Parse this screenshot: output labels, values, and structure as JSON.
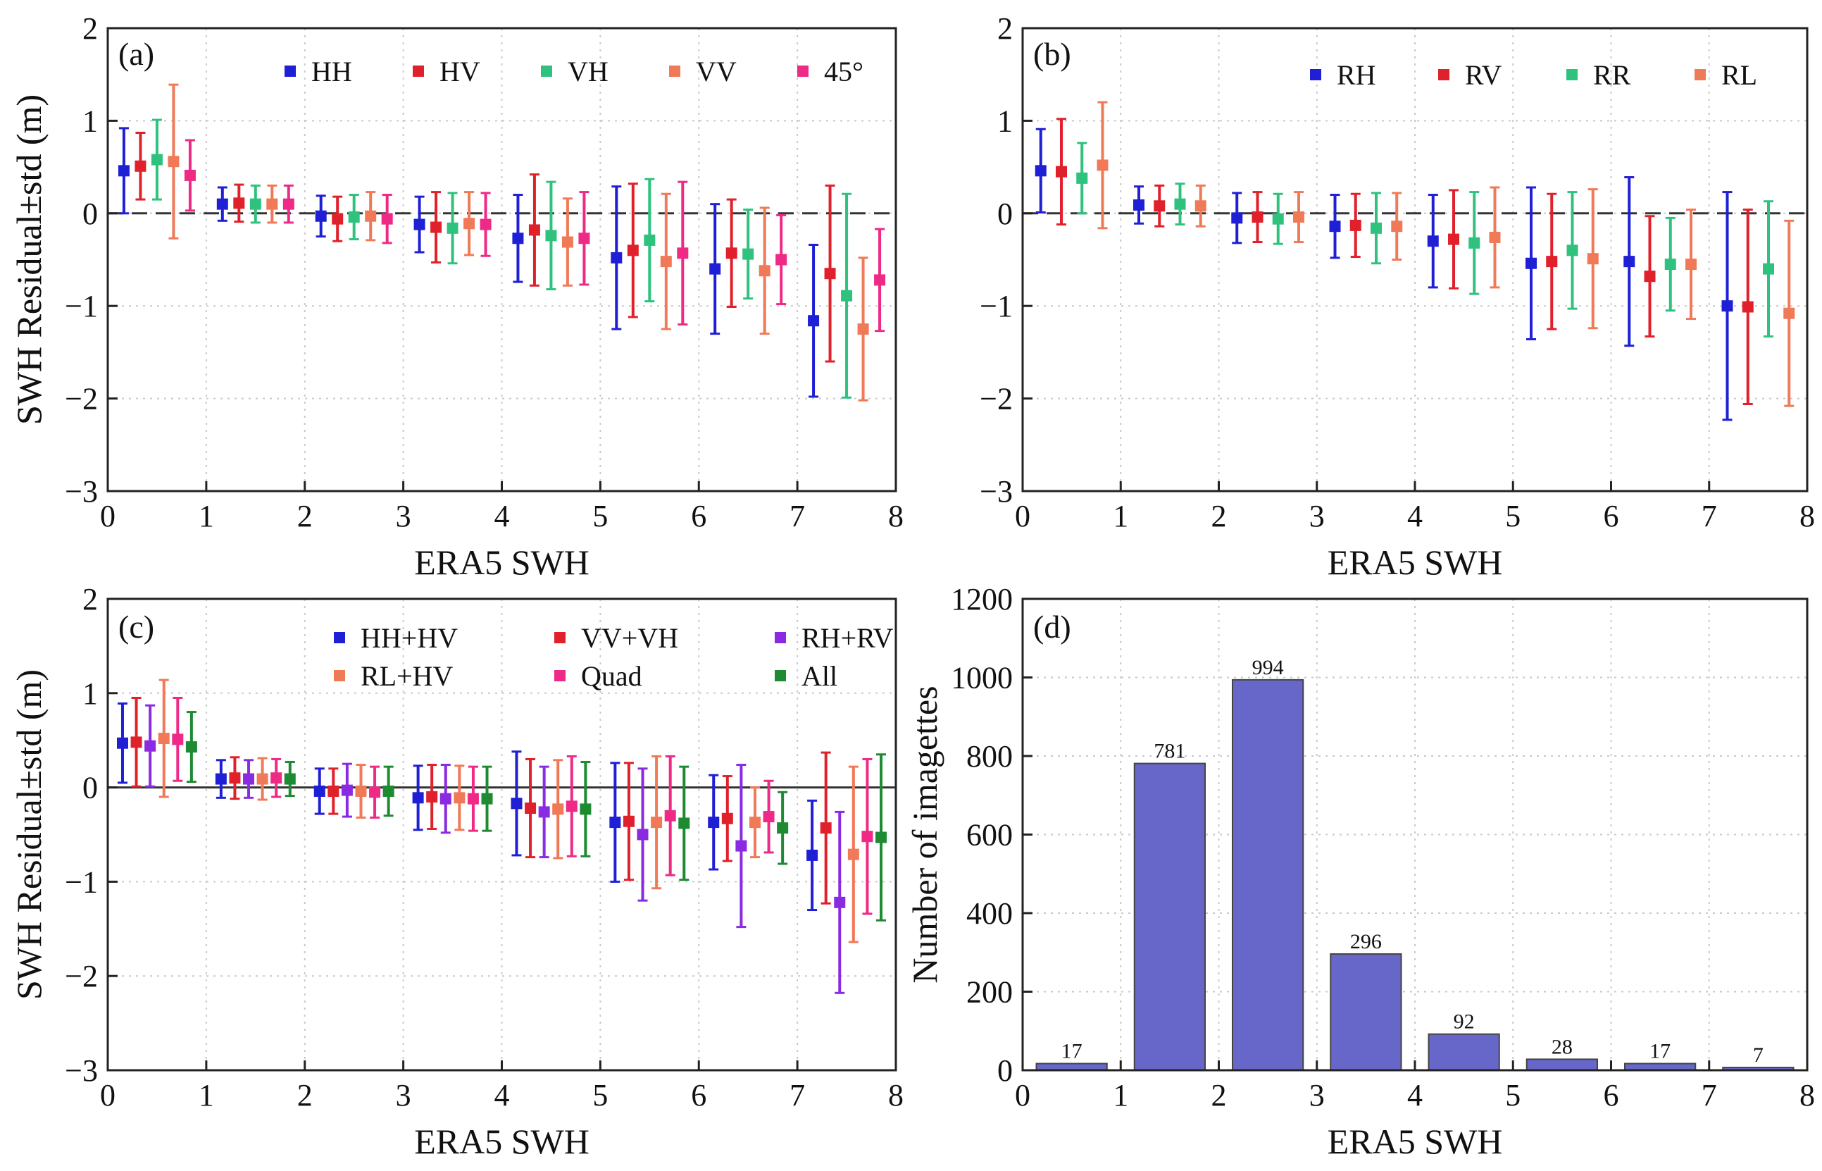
{
  "chart_data": [
    {
      "panel": "(a)",
      "type": "scatter",
      "xlabel": "ERA5 SWH",
      "ylabel": "SWH Residual±std (m)",
      "xlim": [
        0,
        8
      ],
      "ylim": [
        -3,
        2
      ],
      "xticks": [
        "0",
        "1",
        "2",
        "3",
        "4",
        "5",
        "6",
        "7",
        "8"
      ],
      "yticks": [
        "−3",
        "−2",
        "−1",
        "0",
        "1",
        "2"
      ],
      "grid": true,
      "zero_line": "dashed",
      "legend_position": "top",
      "legend_cols": 5,
      "centers": [
        0.5,
        1.5,
        2.5,
        3.5,
        4.5,
        5.5,
        6.5,
        7.5
      ],
      "series": [
        {
          "name": "HH",
          "color": "#1f1fd6",
          "mean": [
            0.46,
            0.1,
            -0.03,
            -0.12,
            -0.27,
            -0.48,
            -0.6,
            -1.16
          ],
          "std": [
            0.46,
            0.18,
            0.22,
            0.3,
            0.47,
            0.77,
            0.7,
            0.82
          ]
        },
        {
          "name": "HV",
          "color": "#e0202a",
          "mean": [
            0.51,
            0.11,
            -0.06,
            -0.15,
            -0.18,
            -0.4,
            -0.43,
            -0.65
          ],
          "std": [
            0.36,
            0.2,
            0.24,
            0.38,
            0.6,
            0.72,
            0.58,
            0.95
          ]
        },
        {
          "name": "VH",
          "color": "#2ec27e",
          "mean": [
            0.58,
            0.1,
            -0.04,
            -0.16,
            -0.24,
            -0.29,
            -0.44,
            -0.89
          ],
          "std": [
            0.43,
            0.2,
            0.24,
            0.38,
            0.58,
            0.66,
            0.48,
            1.1
          ]
        },
        {
          "name": "VV",
          "color": "#f07a58",
          "mean": [
            0.56,
            0.1,
            -0.03,
            -0.11,
            -0.31,
            -0.52,
            -0.62,
            -1.25
          ],
          "std": [
            0.83,
            0.2,
            0.26,
            0.34,
            0.47,
            0.73,
            0.68,
            0.77
          ]
        },
        {
          "name": "45°",
          "color": "#ee2a86",
          "mean": [
            0.41,
            0.1,
            -0.06,
            -0.12,
            -0.27,
            -0.43,
            -0.5,
            -0.72
          ],
          "std": [
            0.38,
            0.2,
            0.26,
            0.34,
            0.5,
            0.77,
            0.48,
            0.55
          ]
        }
      ]
    },
    {
      "panel": "(b)",
      "type": "scatter",
      "xlabel": "ERA5 SWH",
      "ylabel": "SWH Residual±std (m)",
      "xlim": [
        0,
        8
      ],
      "ylim": [
        -3,
        2
      ],
      "xticks": [
        "0",
        "1",
        "2",
        "3",
        "4",
        "5",
        "6",
        "7",
        "8"
      ],
      "yticks": [
        "−3",
        "−2",
        "−1",
        "0",
        "1",
        "2"
      ],
      "grid": true,
      "zero_line": "dashed",
      "legend_position": "top",
      "legend_cols": 4,
      "centers": [
        0.5,
        1.5,
        2.5,
        3.5,
        4.5,
        5.5,
        6.5,
        7.5
      ],
      "series": [
        {
          "name": "RH",
          "color": "#1f1fd6",
          "mean": [
            0.46,
            0.09,
            -0.05,
            -0.14,
            -0.3,
            -0.54,
            -0.52,
            -1.0
          ],
          "std": [
            0.45,
            0.2,
            0.27,
            0.34,
            0.5,
            0.82,
            0.91,
            1.23
          ]
        },
        {
          "name": "RV",
          "color": "#e0202a",
          "mean": [
            0.45,
            0.08,
            -0.04,
            -0.13,
            -0.28,
            -0.52,
            -0.68,
            -1.01
          ],
          "std": [
            0.57,
            0.22,
            0.27,
            0.34,
            0.53,
            0.73,
            0.65,
            1.05
          ]
        },
        {
          "name": "RR",
          "color": "#2ec27e",
          "mean": [
            0.38,
            0.1,
            -0.06,
            -0.16,
            -0.32,
            -0.4,
            -0.55,
            -0.6
          ],
          "std": [
            0.38,
            0.22,
            0.27,
            0.38,
            0.55,
            0.63,
            0.5,
            0.73
          ]
        },
        {
          "name": "RL",
          "color": "#f07a58",
          "mean": [
            0.52,
            0.08,
            -0.04,
            -0.14,
            -0.26,
            -0.49,
            -0.55,
            -1.08
          ],
          "std": [
            0.68,
            0.22,
            0.27,
            0.36,
            0.54,
            0.75,
            0.59,
            1.0
          ]
        }
      ]
    },
    {
      "panel": "(c)",
      "type": "scatter",
      "xlabel": "ERA5 SWH",
      "ylabel": "SWH Residual±std (m)",
      "xlim": [
        0,
        8
      ],
      "ylim": [
        -3,
        2
      ],
      "xticks": [
        "0",
        "1",
        "2",
        "3",
        "4",
        "5",
        "6",
        "7",
        "8"
      ],
      "yticks": [
        "−3",
        "−2",
        "−1",
        "0",
        "1",
        "2"
      ],
      "grid": true,
      "zero_line": "solid",
      "legend_position": "top",
      "legend_cols": 3,
      "centers": [
        0.5,
        1.5,
        2.5,
        3.5,
        4.5,
        5.5,
        6.5,
        7.5
      ],
      "series": [
        {
          "name": "HH+HV",
          "color": "#1f1fd6",
          "mean": [
            0.47,
            0.09,
            -0.04,
            -0.11,
            -0.17,
            -0.37,
            -0.37,
            -0.72
          ],
          "std": [
            0.42,
            0.2,
            0.24,
            0.34,
            0.55,
            0.63,
            0.5,
            0.58
          ]
        },
        {
          "name": "VV+VH",
          "color": "#e0202a",
          "mean": [
            0.48,
            0.1,
            -0.04,
            -0.1,
            -0.22,
            -0.36,
            -0.33,
            -0.43
          ],
          "std": [
            0.47,
            0.22,
            0.24,
            0.34,
            0.52,
            0.62,
            0.45,
            0.8
          ]
        },
        {
          "name": "RH+RV",
          "color": "#8a2be2",
          "mean": [
            0.44,
            0.09,
            -0.03,
            -0.12,
            -0.26,
            -0.5,
            -0.62,
            -1.22
          ],
          "std": [
            0.43,
            0.2,
            0.28,
            0.36,
            0.48,
            0.7,
            0.86,
            0.96
          ]
        },
        {
          "name": "RL+HV",
          "color": "#f07a58",
          "mean": [
            0.52,
            0.09,
            -0.04,
            -0.11,
            -0.23,
            -0.37,
            -0.37,
            -0.71
          ],
          "std": [
            0.62,
            0.22,
            0.28,
            0.34,
            0.52,
            0.7,
            0.37,
            0.93
          ]
        },
        {
          "name": "Quad",
          "color": "#ee2a86",
          "mean": [
            0.51,
            0.1,
            -0.05,
            -0.12,
            -0.2,
            -0.3,
            -0.31,
            -0.52
          ],
          "std": [
            0.44,
            0.2,
            0.27,
            0.34,
            0.53,
            0.63,
            0.38,
            0.82
          ]
        },
        {
          "name": "All",
          "color": "#1e8a32",
          "mean": [
            0.43,
            0.09,
            -0.04,
            -0.12,
            -0.23,
            -0.38,
            -0.43,
            -0.53
          ],
          "std": [
            0.37,
            0.18,
            0.26,
            0.34,
            0.5,
            0.6,
            0.38,
            0.88
          ]
        }
      ]
    },
    {
      "panel": "(d)",
      "type": "bar",
      "xlabel": "ERA5 SWH",
      "ylabel": "Number of imagettes",
      "xlim": [
        0,
        8
      ],
      "ylim": [
        0,
        1200
      ],
      "xticks": [
        "0",
        "1",
        "2",
        "3",
        "4",
        "5",
        "6",
        "7",
        "8"
      ],
      "yticks": [
        "0",
        "200",
        "400",
        "600",
        "800",
        "1000",
        "1200"
      ],
      "grid": true,
      "color": "#6667c8",
      "bin_centers": [
        0.5,
        1.5,
        2.5,
        3.5,
        4.5,
        5.5,
        6.5,
        7.5
      ],
      "values": [
        17,
        781,
        994,
        296,
        92,
        28,
        17,
        7
      ],
      "bar_labels": [
        "17",
        "781",
        "994",
        "296",
        "92",
        "28",
        "17",
        "7"
      ]
    }
  ]
}
